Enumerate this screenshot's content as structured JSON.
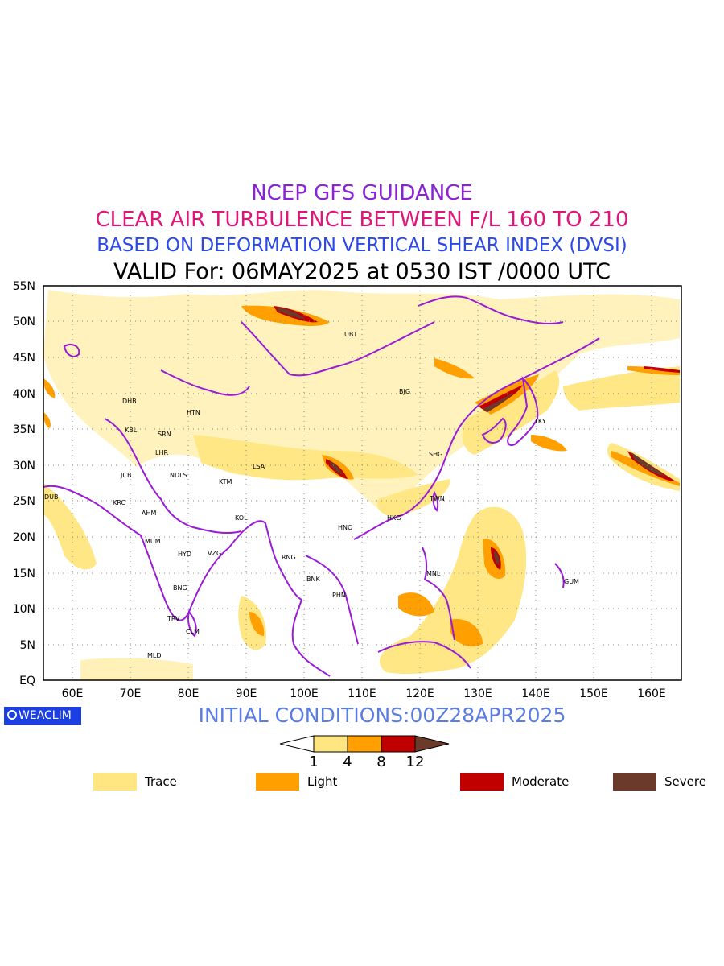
{
  "header": {
    "line1": "NCEP GFS GUIDANCE",
    "line2": "CLEAR AIR TURBULENCE BETWEEN F/L 160 TO 210",
    "line3": "BASED ON DEFORMATION VERTICAL SHEAR INDEX (DVSI)",
    "line4": "VALID For: 06MAY2025 at 0530 IST /0000 UTC"
  },
  "map": {
    "lat_labels": [
      "55N",
      "50N",
      "45N",
      "40N",
      "35N",
      "30N",
      "25N",
      "20N",
      "15N",
      "10N",
      "5N",
      "EQ"
    ],
    "lon_labels": [
      "60E",
      "70E",
      "80E",
      "90E",
      "100E",
      "110E",
      "120E",
      "130E",
      "140E",
      "150E",
      "160E"
    ],
    "cities": [
      "UBT",
      "BJG",
      "DHB",
      "HTN",
      "KBL",
      "SRN",
      "LHR",
      "JCB",
      "NDLS",
      "KTM",
      "LSA",
      "SHG",
      "TKY",
      "DUB",
      "KRC",
      "AHM",
      "TWN",
      "KOL",
      "HKG",
      "HNO",
      "MUM",
      "HYD",
      "VZG",
      "RNG",
      "MNL",
      "BNK",
      "GUM",
      "PHN",
      "BNG",
      "TRV",
      "CLM",
      "MLD"
    ]
  },
  "footer": {
    "badge": "WEACLIM",
    "initial": "INITIAL CONDITIONS:00Z28APR2025"
  },
  "colorbar": {
    "ticks": [
      "1",
      "4",
      "8",
      "12"
    ],
    "colors": [
      "#ffffff",
      "#ffe680",
      "#ffa000",
      "#c00000",
      "#6b3a2a"
    ]
  },
  "legend": [
    {
      "label": "Trace",
      "color": "#ffe680"
    },
    {
      "label": "Light",
      "color": "#ffa000"
    },
    {
      "label": "Moderate",
      "color": "#c00000"
    },
    {
      "label": "Severe",
      "color": "#6b3a2a"
    }
  ]
}
